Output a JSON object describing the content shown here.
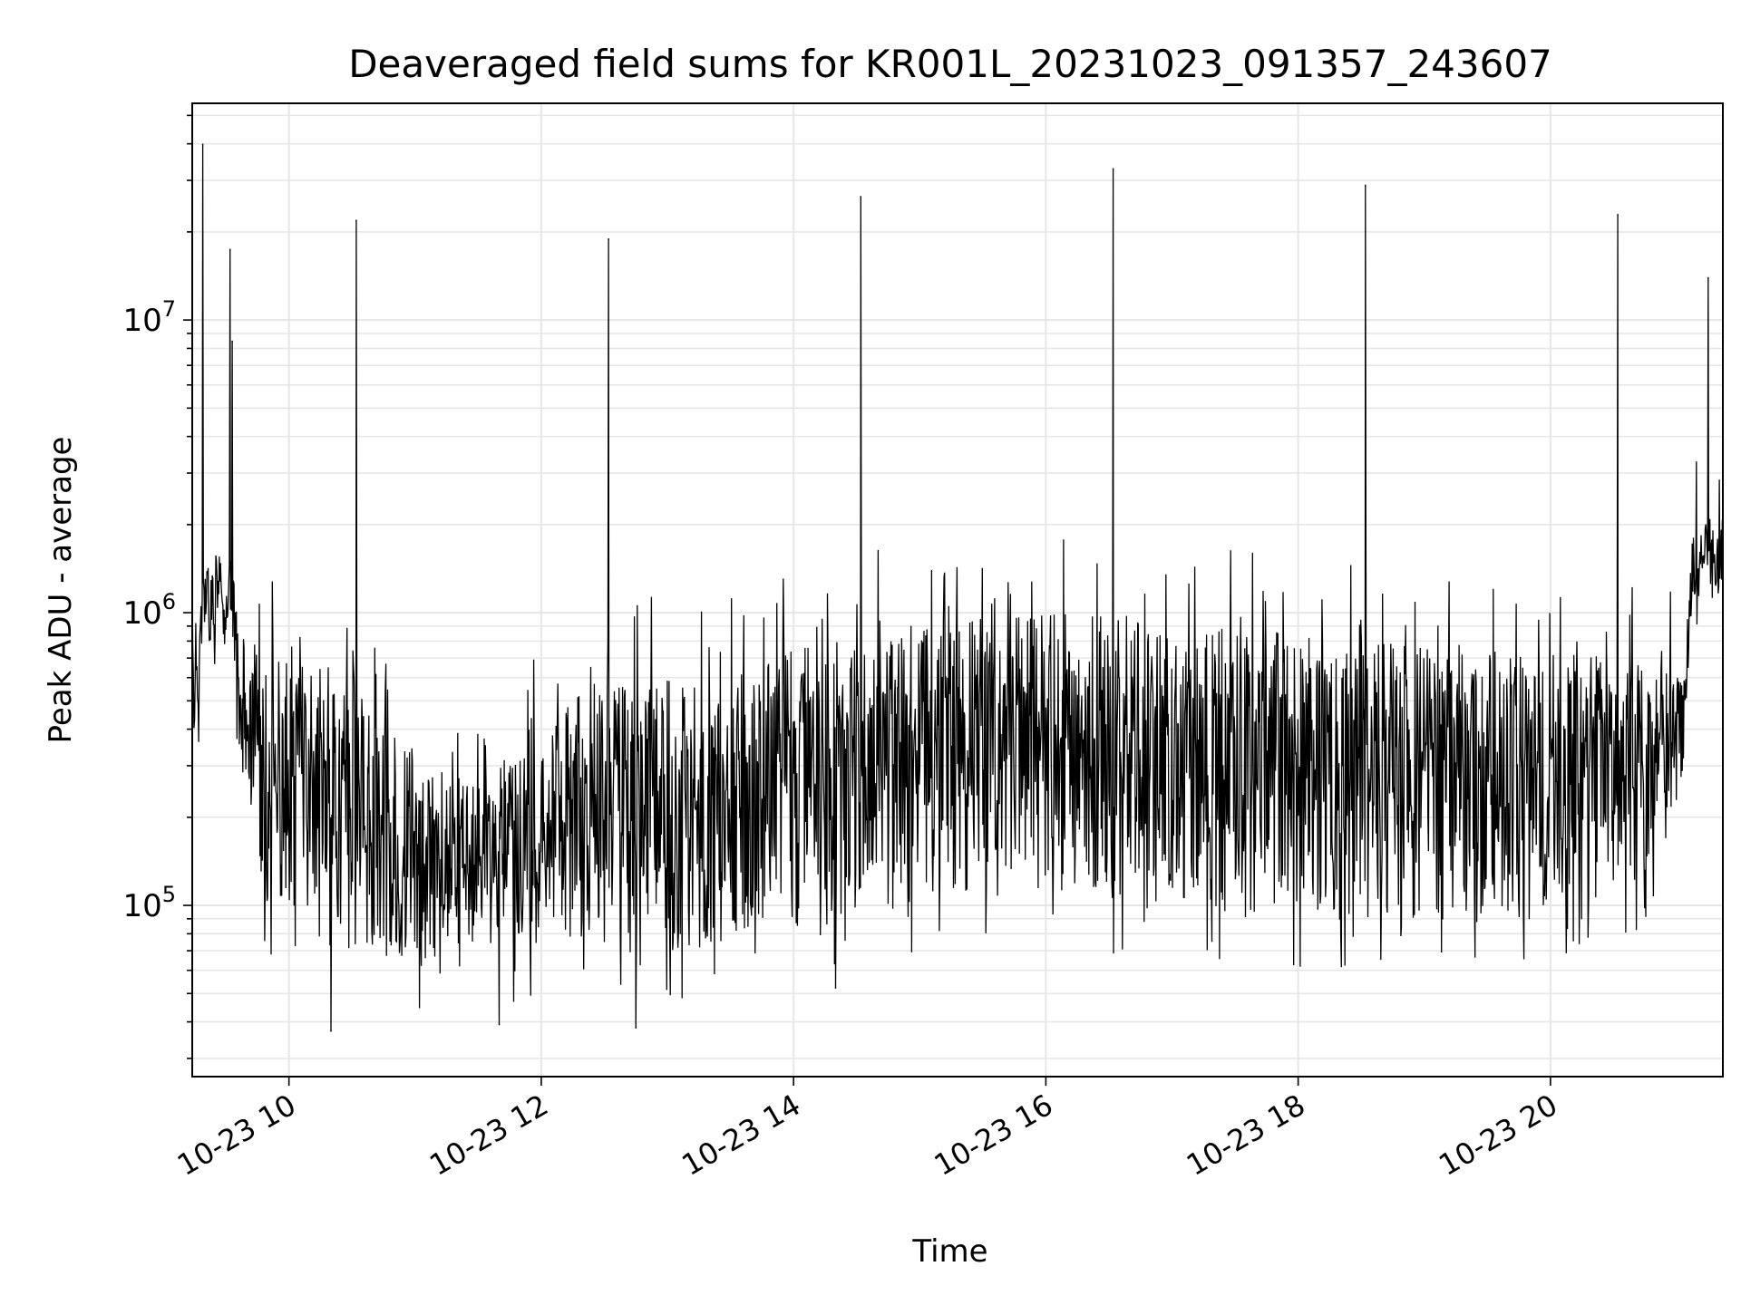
{
  "chart_data": {
    "type": "line",
    "title": "Deaveraged field sums for KR001L_20231023_091357_243607",
    "xlabel": "Time",
    "ylabel": "Peak ADU - average",
    "y_scale": "log",
    "x_range": [
      "2023-10-23T09:14",
      "2023-10-23T21:22"
    ],
    "ylim": [
      26000,
      55000000
    ],
    "grid": true,
    "line_color": "#000000",
    "grid_color": "#e6e6e6",
    "x_ticks": [
      {
        "time": "2023-10-23T10:00",
        "label": "10-23 10"
      },
      {
        "time": "2023-10-23T12:00",
        "label": "10-23 12"
      },
      {
        "time": "2023-10-23T14:00",
        "label": "10-23 14"
      },
      {
        "time": "2023-10-23T16:00",
        "label": "10-23 16"
      },
      {
        "time": "2023-10-23T18:00",
        "label": "10-23 18"
      },
      {
        "time": "2023-10-23T20:00",
        "label": "10-23 20"
      }
    ],
    "y_ticks": [
      {
        "value": 100000,
        "base": "10",
        "exp": "5"
      },
      {
        "value": 1000000,
        "base": "10",
        "exp": "6"
      },
      {
        "value": 10000000,
        "base": "10",
        "exp": "7"
      }
    ],
    "envelope": [
      {
        "time": "2023-10-23T09:14",
        "low": 350000,
        "high": 800000
      },
      {
        "time": "2023-10-23T09:20",
        "low": 700000,
        "high": 1500000
      },
      {
        "time": "2023-10-23T09:32",
        "low": 900000,
        "high": 1700000
      },
      {
        "time": "2023-10-23T09:36",
        "low": 300000,
        "high": 900000
      },
      {
        "time": "2023-10-23T09:50",
        "low": 100000,
        "high": 700000
      },
      {
        "time": "2023-10-23T10:20",
        "low": 90000,
        "high": 650000
      },
      {
        "time": "2023-10-23T10:45",
        "low": 65000,
        "high": 400000
      },
      {
        "time": "2023-10-23T11:30",
        "low": 65000,
        "high": 250000
      },
      {
        "time": "2023-10-23T12:10",
        "low": 75000,
        "high": 500000
      },
      {
        "time": "2023-10-23T13:00",
        "low": 70000,
        "high": 650000
      },
      {
        "time": "2023-10-23T14:00",
        "low": 80000,
        "high": 750000
      },
      {
        "time": "2023-10-23T14:45",
        "low": 95000,
        "high": 900000
      },
      {
        "time": "2023-10-23T15:30",
        "low": 110000,
        "high": 1000000
      },
      {
        "time": "2023-10-23T16:30",
        "low": 100000,
        "high": 1000000
      },
      {
        "time": "2023-10-23T17:30",
        "low": 95000,
        "high": 900000
      },
      {
        "time": "2023-10-23T18:30",
        "low": 90000,
        "high": 800000
      },
      {
        "time": "2023-10-23T19:30",
        "low": 90000,
        "high": 750000
      },
      {
        "time": "2023-10-23T20:40",
        "low": 110000,
        "high": 700000
      },
      {
        "time": "2023-10-23T21:03",
        "low": 250000,
        "high": 600000
      },
      {
        "time": "2023-10-23T21:08",
        "low": 1000000,
        "high": 2000000
      },
      {
        "time": "2023-10-23T21:22",
        "low": 1100000,
        "high": 2200000
      }
    ],
    "spikes": [
      {
        "time": "2023-10-23T09:19",
        "value": 40000000
      },
      {
        "time": "2023-10-23T09:32",
        "value": 17500000
      },
      {
        "time": "2023-10-23T09:33",
        "value": 8500000
      },
      {
        "time": "2023-10-23T10:32",
        "value": 22000000
      },
      {
        "time": "2023-10-23T12:32",
        "value": 19000000
      },
      {
        "time": "2023-10-23T14:32",
        "value": 26500000
      },
      {
        "time": "2023-10-23T16:32",
        "value": 33000000
      },
      {
        "time": "2023-10-23T18:32",
        "value": 29000000
      },
      {
        "time": "2023-10-23T20:32",
        "value": 23000000
      },
      {
        "time": "2023-10-23T21:15",
        "value": 14000000
      }
    ],
    "dips": [
      {
        "time": "2023-10-23T10:20",
        "value": 37000
      },
      {
        "time": "2023-10-23T11:40",
        "value": 39000
      },
      {
        "time": "2023-10-23T12:45",
        "value": 38000
      },
      {
        "time": "2023-10-23T14:20",
        "value": 52000
      }
    ]
  }
}
